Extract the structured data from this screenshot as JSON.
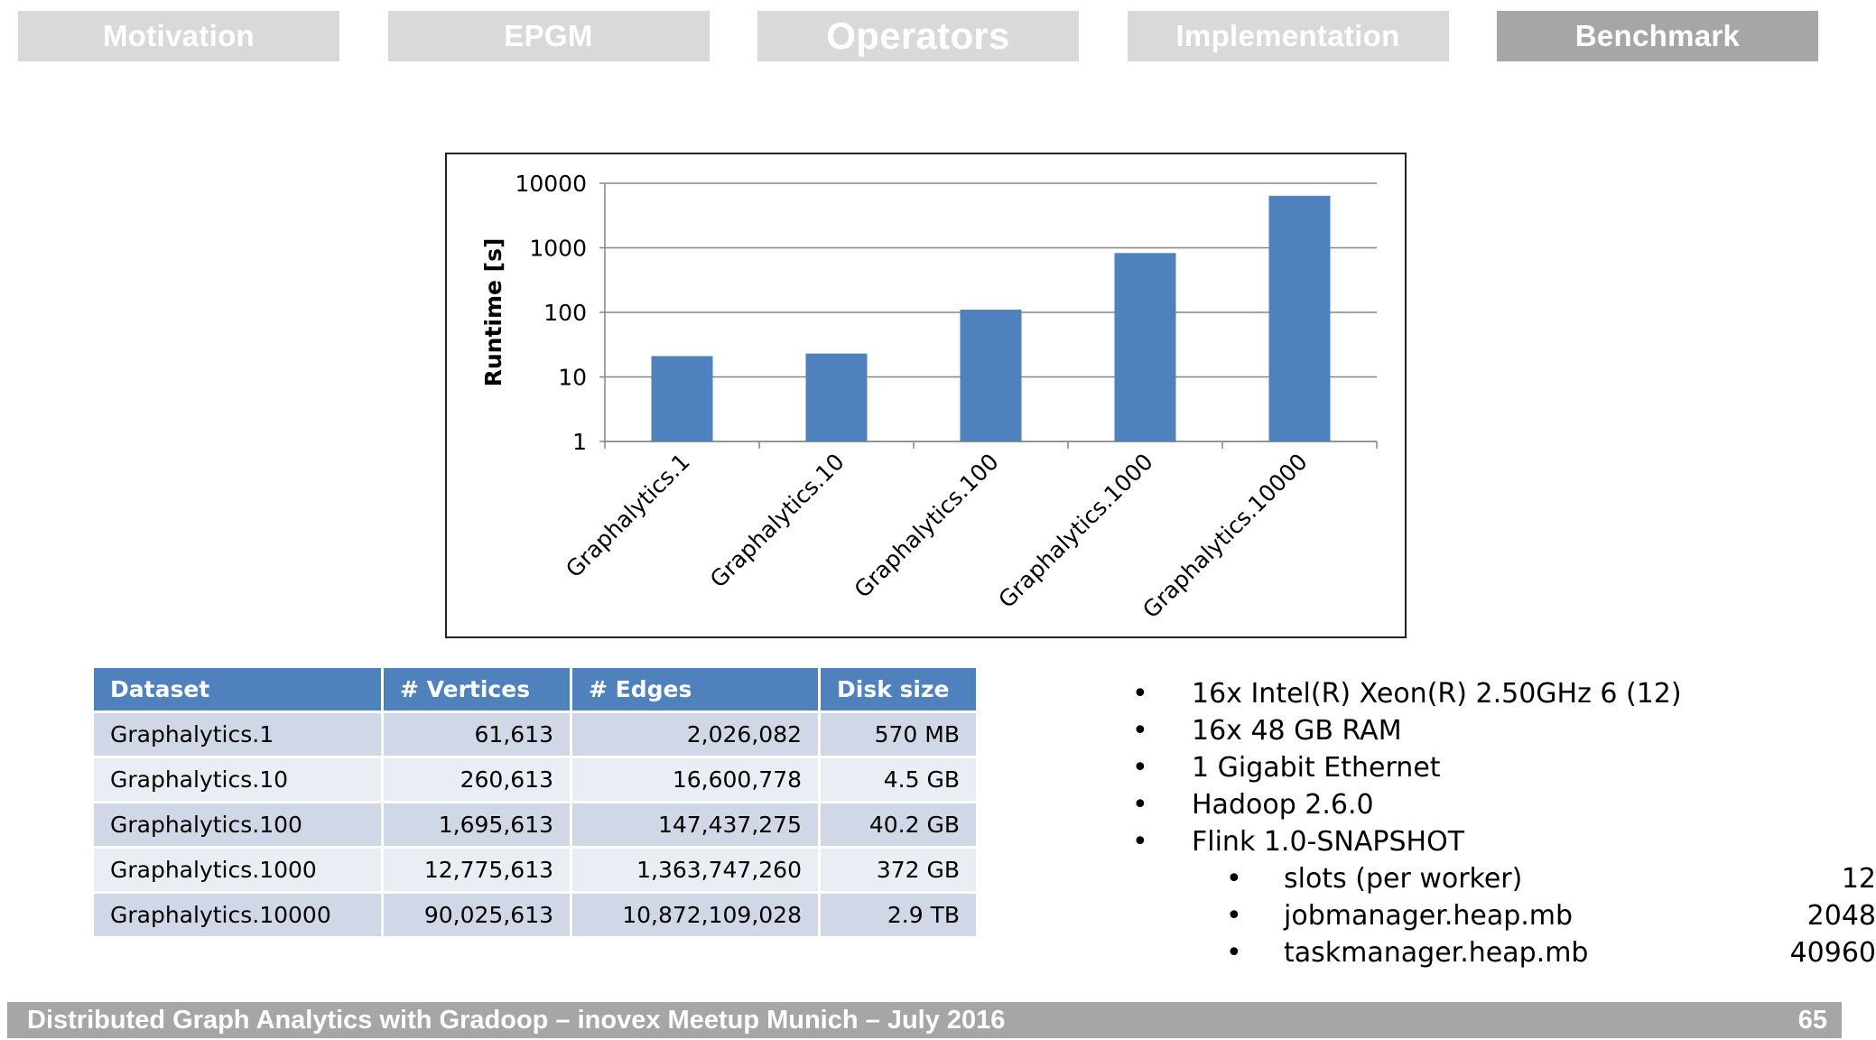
{
  "nav": {
    "tabs": [
      {
        "label": "Motivation"
      },
      {
        "label": "EPGM"
      },
      {
        "label": "Operators"
      },
      {
        "label": "Implementation"
      },
      {
        "label": "Benchmark"
      }
    ],
    "active_tab": "Benchmark"
  },
  "chart_data": {
    "type": "bar",
    "title": "",
    "xlabel": "",
    "ylabel": "Runtime [s]",
    "y_scale": "log",
    "ylim": [
      1,
      10000
    ],
    "y_ticks": [
      "10000",
      "1000",
      "100",
      "10",
      "1"
    ],
    "categories": [
      "Graphalytics.1",
      "Graphalytics.10",
      "Graphalytics.100",
      "Graphalytics.1000",
      "Graphalytics.10000"
    ],
    "values": [
      21,
      23,
      110,
      830,
      6400
    ],
    "bar_color": "#4f81bd",
    "grid": true,
    "legend": "none"
  },
  "table": {
    "headers": [
      "Dataset",
      "# Vertices",
      "# Edges",
      "Disk size"
    ],
    "rows": [
      [
        "Graphalytics.1",
        "61,613",
        "2,026,082",
        "570 MB"
      ],
      [
        "Graphalytics.10",
        "260,613",
        "16,600,778",
        "4.5 GB"
      ],
      [
        "Graphalytics.100",
        "1,695,613",
        "147,437,275",
        "40.2 GB"
      ],
      [
        "Graphalytics.1000",
        "12,775,613",
        "1,363,747,260",
        "372 GB"
      ],
      [
        "Graphalytics.10000",
        "90,025,613",
        "10,872,109,028",
        "2.9 TB"
      ]
    ],
    "header_color": "#4f81bd"
  },
  "specs": {
    "bullet": "•",
    "items": [
      "16x Intel(R) Xeon(R) 2.50GHz 6 (12)",
      "16x 48 GB RAM",
      "1 Gigabit Ethernet",
      "Hadoop 2.6.0",
      "Flink 1.0-SNAPSHOT"
    ],
    "sub_items": [
      {
        "label": "slots (per worker)",
        "value": "12"
      },
      {
        "label": "jobmanager.heap.mb",
        "value": "2048"
      },
      {
        "label": "taskmanager.heap.mb",
        "value": "40960"
      }
    ]
  },
  "footer": {
    "title": "Distributed Graph Analytics with Gradoop – inovex Meetup Munich – July 2016",
    "page": "65"
  }
}
